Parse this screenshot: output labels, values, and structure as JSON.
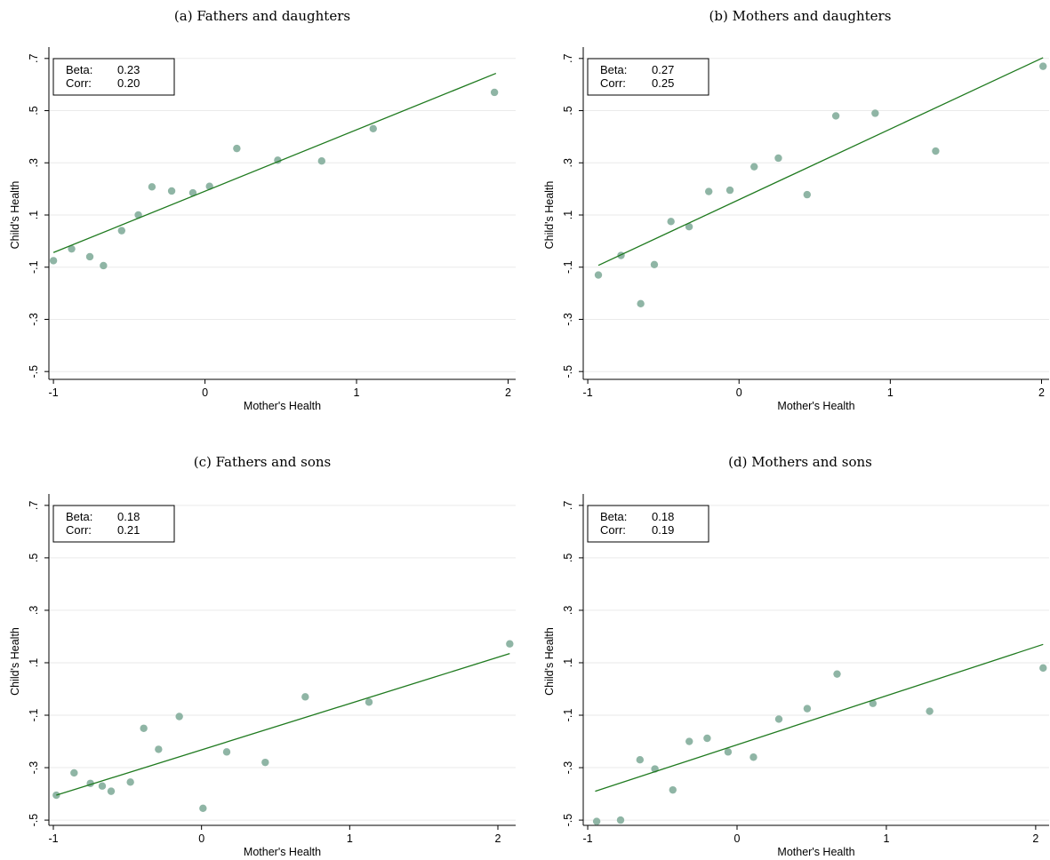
{
  "chart_data": [
    {
      "type": "scatter",
      "title": "(a) Fathers and daughters",
      "xlabel": "Mother's Health",
      "ylabel": "Child's Health",
      "xlim": [
        -1.03,
        2.05
      ],
      "ylim": [
        -0.53,
        0.73
      ],
      "xticks": [
        "-1",
        "0",
        "1",
        "2"
      ],
      "yticks": [
        ".7",
        ".5",
        ".3",
        ".1",
        "-.1",
        "-.3",
        "-.5"
      ],
      "grid": true,
      "stats": {
        "beta_label": "Beta:",
        "beta": "0.23",
        "corr_label": "Corr:",
        "corr": "0.20"
      },
      "fit": {
        "x": [
          -1.0,
          1.92
        ],
        "y": [
          -0.044,
          0.643
        ]
      },
      "points": [
        {
          "x": -1.0,
          "y": -0.075
        },
        {
          "x": -0.88,
          "y": -0.03
        },
        {
          "x": -0.76,
          "y": -0.06
        },
        {
          "x": -0.67,
          "y": -0.094
        },
        {
          "x": -0.55,
          "y": 0.04
        },
        {
          "x": -0.44,
          "y": 0.1
        },
        {
          "x": -0.35,
          "y": 0.208
        },
        {
          "x": -0.22,
          "y": 0.192
        },
        {
          "x": -0.08,
          "y": 0.185
        },
        {
          "x": 0.03,
          "y": 0.21
        },
        {
          "x": 0.21,
          "y": 0.355
        },
        {
          "x": 0.48,
          "y": 0.31
        },
        {
          "x": 0.77,
          "y": 0.307
        },
        {
          "x": 1.11,
          "y": 0.431
        },
        {
          "x": 1.91,
          "y": 0.57
        }
      ]
    },
    {
      "type": "scatter",
      "title": "(b) Mothers and daughters",
      "xlabel": "Mother's Health",
      "ylabel": "Child's Health",
      "xlim": [
        -1.03,
        2.05
      ],
      "ylim": [
        -0.53,
        0.73
      ],
      "xticks": [
        "-1",
        "0",
        "1",
        "2"
      ],
      "yticks": [
        ".7",
        ".5",
        ".3",
        ".1",
        "-.1",
        "-.3",
        "-.5"
      ],
      "grid": true,
      "stats": {
        "beta_label": "Beta:",
        "beta": "0.27",
        "corr_label": "Corr:",
        "corr": "0.25"
      },
      "fit": {
        "x": [
          -0.93,
          2.01
        ],
        "y": [
          -0.093,
          0.703
        ]
      },
      "points": [
        {
          "x": -0.93,
          "y": -0.13
        },
        {
          "x": -0.78,
          "y": -0.055
        },
        {
          "x": -0.65,
          "y": -0.24
        },
        {
          "x": -0.56,
          "y": -0.09
        },
        {
          "x": -0.45,
          "y": 0.075
        },
        {
          "x": -0.33,
          "y": 0.055
        },
        {
          "x": -0.2,
          "y": 0.19
        },
        {
          "x": -0.06,
          "y": 0.195
        },
        {
          "x": 0.1,
          "y": 0.285
        },
        {
          "x": 0.26,
          "y": 0.318
        },
        {
          "x": 0.45,
          "y": 0.178
        },
        {
          "x": 0.64,
          "y": 0.48
        },
        {
          "x": 0.9,
          "y": 0.49
        },
        {
          "x": 1.3,
          "y": 0.345
        },
        {
          "x": 2.01,
          "y": 0.67
        }
      ]
    },
    {
      "type": "scatter",
      "title": "(c) Fathers and sons",
      "xlabel": "Mother's Health",
      "ylabel": "Child's Health",
      "xlim": [
        -1.03,
        2.12
      ],
      "ylim": [
        -0.52,
        0.73
      ],
      "xticks": [
        "-1",
        "0",
        "1",
        "2"
      ],
      "yticks": [
        ".7",
        ".5",
        ".3",
        ".1",
        "-.1",
        "-.3",
        "-.5"
      ],
      "grid": true,
      "stats": {
        "beta_label": "Beta:",
        "beta": "0.18",
        "corr_label": "Corr:",
        "corr": "0.21"
      },
      "fit": {
        "x": [
          -0.98,
          2.08
        ],
        "y": [
          -0.405,
          0.135
        ]
      },
      "points": [
        {
          "x": -0.98,
          "y": -0.405
        },
        {
          "x": -0.86,
          "y": -0.32
        },
        {
          "x": -0.75,
          "y": -0.36
        },
        {
          "x": -0.67,
          "y": -0.37
        },
        {
          "x": -0.61,
          "y": -0.39
        },
        {
          "x": -0.48,
          "y": -0.355
        },
        {
          "x": -0.39,
          "y": -0.15
        },
        {
          "x": -0.29,
          "y": -0.23
        },
        {
          "x": -0.15,
          "y": -0.105
        },
        {
          "x": 0.01,
          "y": -0.455
        },
        {
          "x": 0.17,
          "y": -0.24
        },
        {
          "x": 0.43,
          "y": -0.28
        },
        {
          "x": 0.7,
          "y": -0.03
        },
        {
          "x": 1.13,
          "y": -0.05
        },
        {
          "x": 2.08,
          "y": 0.172
        }
      ]
    },
    {
      "type": "scatter",
      "title": "(d) Mothers and sons",
      "xlabel": "Mother's Health",
      "ylabel": "Child's Health",
      "xlim": [
        -1.03,
        2.09
      ],
      "ylim": [
        -0.52,
        0.73
      ],
      "xticks": [
        "-1",
        "0",
        "1",
        "2"
      ],
      "yticks": [
        ".7",
        ".5",
        ".3",
        ".1",
        "-.1",
        "-.3",
        "-.5"
      ],
      "grid": true,
      "stats": {
        "beta_label": "Beta:",
        "beta": "0.18",
        "corr_label": "Corr:",
        "corr": "0.19"
      },
      "fit": {
        "x": [
          -0.95,
          2.05
        ],
        "y": [
          -0.39,
          0.17
        ]
      },
      "points": [
        {
          "x": -0.94,
          "y": -0.505
        },
        {
          "x": -0.78,
          "y": -0.5
        },
        {
          "x": -0.65,
          "y": -0.27
        },
        {
          "x": -0.55,
          "y": -0.305
        },
        {
          "x": -0.43,
          "y": -0.385
        },
        {
          "x": -0.32,
          "y": -0.2
        },
        {
          "x": -0.2,
          "y": -0.188
        },
        {
          "x": -0.06,
          "y": -0.24
        },
        {
          "x": 0.11,
          "y": -0.26
        },
        {
          "x": 0.28,
          "y": -0.115
        },
        {
          "x": 0.47,
          "y": -0.075
        },
        {
          "x": 0.67,
          "y": 0.057
        },
        {
          "x": 0.91,
          "y": -0.055
        },
        {
          "x": 1.29,
          "y": -0.085
        },
        {
          "x": 2.05,
          "y": 0.08
        }
      ]
    }
  ]
}
